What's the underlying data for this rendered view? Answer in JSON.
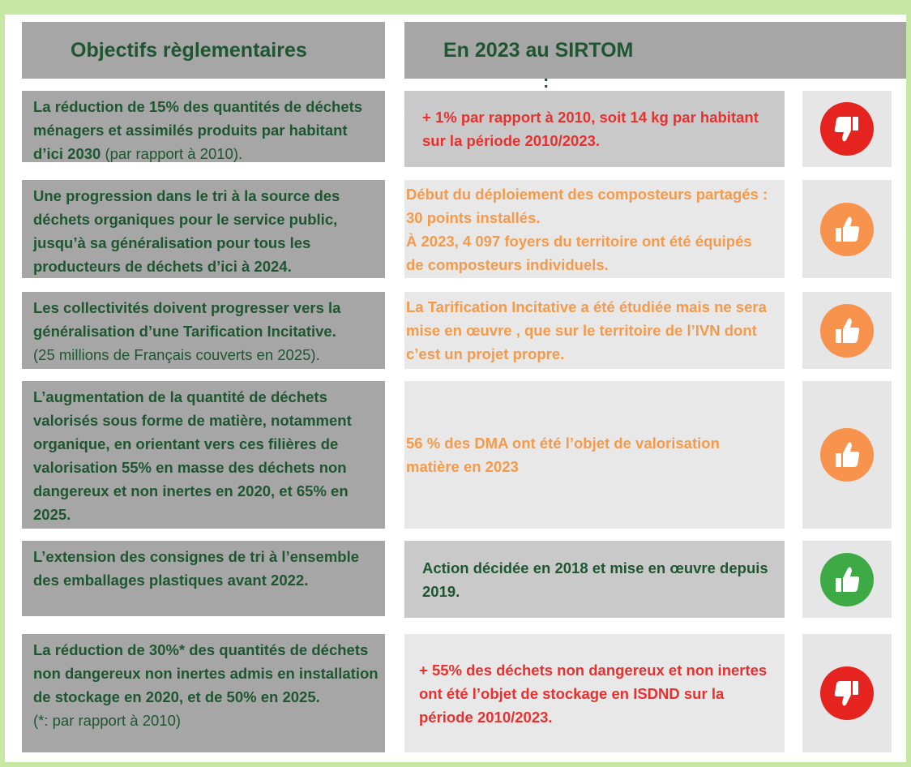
{
  "header": {
    "left": "Objectifs règlementaires",
    "right": "En 2023 au SIRTOM",
    "colon": ":"
  },
  "rows": [
    {
      "objective": "La réduction de 15% des quantités de déchets   ménagers et assimilés produits par habitant d’ici 2030",
      "note": " (par rapport à 2010).",
      "result": [
        "+ 1% par rapport à 2010, soit 14 kg par habitant sur la période 2010/2023."
      ]
    },
    {
      "objective": "Une progression dans le tri à la source des déchets organiques pour le service public, jusqu’à sa généralisation pour tous les producteurs de déchets d’ici à 2024.",
      "result": [
        "Début du déploiement des composteurs partagés : 30 points installés.",
        "À 2023, 4 097 foyers du territoire ont été équipés de composteurs individuels."
      ]
    },
    {
      "objective": "Les collectivités doivent progresser vers la généralisation d’une Tarification Incitative.",
      "note": "(25 millions de Français couverts en 2025).",
      "result": [
        "La Tarification Incitative a été étudiée mais ne sera mise en œuvre , que sur le territoire de l’IVN dont c’est un projet propre."
      ]
    },
    {
      "objective": "L’augmentation de la quantité de déchets valorisés sous forme de matière, notamment organique, en orientant vers ces filières de valorisation 55% en masse des déchets non dangereux et non inertes en 2020, et 65% en 2025.",
      "result": [
        "56 % des DMA ont été l’objet de valorisation matière en 2023"
      ]
    },
    {
      "objective": "L’extension des consignes de tri à l’ensemble des emballages plastiques avant 2022.",
      "result": [
        "Action décidée en 2018 et mise en œuvre depuis 2019."
      ]
    },
    {
      "objective": "La réduction de 30%* des quantités de déchets non dangereux non inertes admis en installation de stockage en 2020, et de 50% en 2025.",
      "note": "(*: par rapport à 2010)",
      "result": [
        "+ 55% des déchets non dangereux et non inertes ont été l’objet de stockage en ISDND sur la période 2010/2023."
      ]
    }
  ]
}
